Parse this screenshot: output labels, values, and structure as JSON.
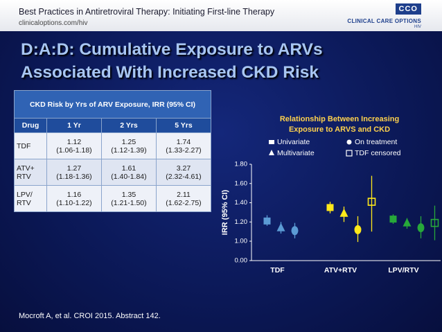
{
  "header": {
    "title": "Best Practices in Antiretroviral Therapy: Initiating First-line Therapy",
    "url": "clinicaloptions.com/hiv"
  },
  "logo": {
    "mark": "CCO",
    "name": "CLINICAL CARE OPTIONS",
    "sub": "HIV"
  },
  "slide_title": [
    "D:A:D: Cumulative Exposure to ARVs",
    "Associated With Increased CKD Risk"
  ],
  "table": {
    "caption": "CKD Risk by Yrs of ARV Exposure, IRR (95% CI)",
    "header": [
      "Drug",
      "1 Yr",
      "2 Yrs",
      "5 Yrs"
    ],
    "rows": [
      [
        "TDF",
        [
          "1.12",
          "(1.06-1.18)"
        ],
        [
          "1.25",
          "(1.12-1.39)"
        ],
        [
          "1.74",
          "(1.33-2.27)"
        ]
      ],
      [
        "ATV+ RTV",
        [
          "1.27",
          "(1.18-1.36)"
        ],
        [
          "1.61",
          "(1.40-1.84)"
        ],
        [
          "3.27",
          "(2.32-4.61)"
        ]
      ],
      [
        "LPV/ RTV",
        [
          "1.16",
          "(1.10-1.22)"
        ],
        [
          "1.35",
          "(1.21-1.50)"
        ],
        [
          "2.11",
          "(1.62-2.75)"
        ]
      ]
    ]
  },
  "footnote": "Mocroft A, et al. CROI 2015. Abstract 142.",
  "chart_data": {
    "type": "errorbar",
    "title": [
      "Relationship Between Increasing",
      "Exposure to ARVS and CKD"
    ],
    "y_label": "IRR (95% CI)",
    "categories": [
      "TDF",
      "ATV+RTV",
      "LPV/RTV"
    ],
    "category_colors": [
      "#5b9bd5",
      "#ffe81a",
      "#27a83a"
    ],
    "ylim": [
      0,
      1.8
    ],
    "axis_break": [
      0,
      1
    ],
    "yticks": [
      {
        "value": 0,
        "label": "0.00"
      },
      {
        "value": 1,
        "label": "1.00"
      },
      {
        "value": 1.2,
        "label": "1.20"
      },
      {
        "value": 1.4,
        "label": "1.40"
      },
      {
        "value": 1.6,
        "label": "1.60"
      },
      {
        "value": 1.8,
        "label": "1.80"
      }
    ],
    "series": [
      {
        "name": "Univariate",
        "marker": "square",
        "filled": true,
        "values": [
          1.21,
          1.35,
          1.23
        ],
        "lower": [
          1.16,
          1.29,
          1.18
        ],
        "upper": [
          1.27,
          1.41,
          1.28
        ]
      },
      {
        "name": "Multivariate",
        "marker": "triangle",
        "filled": true,
        "values": [
          1.14,
          1.29,
          1.19
        ],
        "lower": [
          1.08,
          1.2,
          1.13
        ],
        "upper": [
          1.2,
          1.36,
          1.24
        ]
      },
      {
        "name": "On treatment",
        "marker": "circle",
        "filled": true,
        "values": [
          1.11,
          1.12,
          1.14
        ],
        "lower": [
          1.03,
          0.96,
          1.03
        ],
        "upper": [
          1.19,
          1.26,
          1.26
        ]
      },
      {
        "name": "TDF censored",
        "marker": "square",
        "filled": false,
        "values": [
          null,
          1.41,
          1.19
        ],
        "lower": [
          null,
          1.1,
          1.01
        ],
        "upper": [
          null,
          1.68,
          1.37
        ]
      }
    ]
  }
}
